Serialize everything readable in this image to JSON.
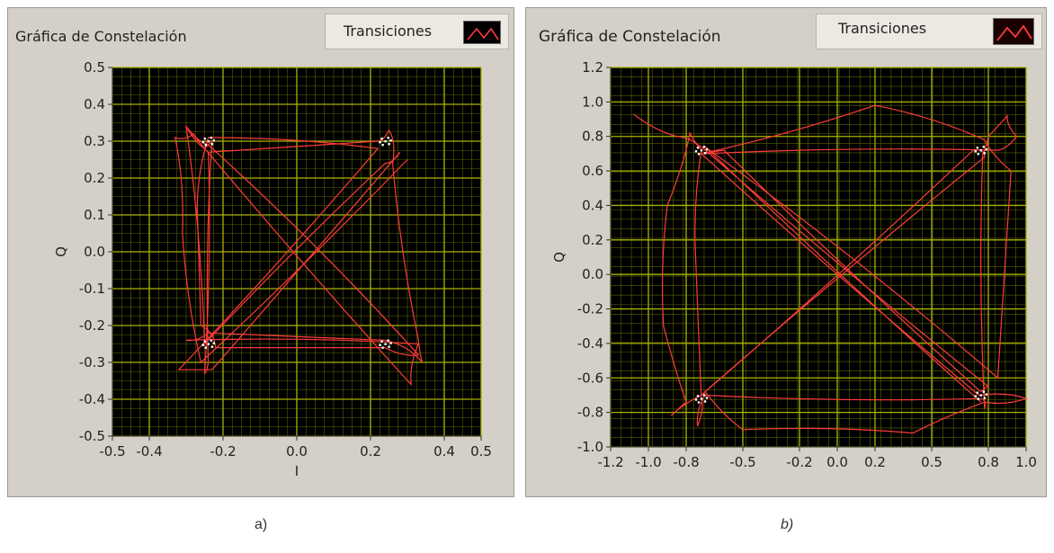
{
  "colors": {
    "panel_bg": "#d4d0c8",
    "plot_bg": "#000000",
    "grid": "#a8b400",
    "trace": "#ff3b3b",
    "marker": "#ffffff"
  },
  "chart_data": [
    {
      "type": "line",
      "title": "Gráfica de Constelación",
      "legend": "Transiciones",
      "legend_placement": "top-right",
      "xlabel": "I",
      "ylabel": "Q",
      "xlim": [
        -0.5,
        0.5
      ],
      "ylim": [
        -0.5,
        0.5
      ],
      "grid": true,
      "xticks": [
        "-0.5",
        "-0.4",
        "-0.2",
        "0.0",
        "0.2",
        "0.4",
        "0.5"
      ],
      "xtick_values": [
        -0.5,
        -0.4,
        -0.2,
        0.0,
        0.2,
        0.4,
        0.5
      ],
      "yticks": [
        "0.5",
        "0.4",
        "0.3",
        "0.2",
        "0.1",
        "0.0",
        "-0.1",
        "-0.2",
        "-0.3",
        "-0.4",
        "-0.5"
      ],
      "ytick_values": [
        0.5,
        0.4,
        0.3,
        0.2,
        0.1,
        0.0,
        -0.1,
        -0.2,
        -0.3,
        -0.4,
        -0.5
      ],
      "symbols": [
        {
          "x": -0.24,
          "y": 0.3
        },
        {
          "x": 0.24,
          "y": 0.3
        },
        {
          "x": -0.24,
          "y": -0.25
        },
        {
          "x": 0.24,
          "y": -0.25
        }
      ],
      "series": [
        {
          "values": [
            [
              -0.3,
              0.34
            ],
            [
              -0.25,
              0.28
            ],
            [
              -0.23,
              0.3
            ],
            [
              -0.24,
              -0.3
            ],
            [
              -0.25,
              -0.33
            ],
            [
              -0.24,
              0.27
            ],
            [
              0.22,
              0.3
            ],
            [
              0.25,
              0.33
            ],
            [
              0.26,
              0.24
            ],
            [
              0.33,
              -0.24
            ],
            [
              0.34,
              -0.3
            ],
            [
              0.24,
              -0.24
            ],
            [
              -0.24,
              -0.22
            ],
            [
              -0.3,
              -0.24
            ],
            [
              0.33,
              -0.25
            ],
            [
              0.31,
              -0.36
            ],
            [
              -0.3,
              0.34
            ],
            [
              -0.25,
              -0.25
            ],
            [
              0.24,
              0.24
            ],
            [
              0.28,
              0.27
            ],
            [
              -0.23,
              -0.32
            ],
            [
              -0.32,
              -0.32
            ],
            [
              0.22,
              0.28
            ],
            [
              -0.24,
              0.31
            ],
            [
              -0.27,
              0.12
            ],
            [
              -0.26,
              -0.2
            ],
            [
              -0.22,
              -0.26
            ],
            [
              0.24,
              -0.26
            ],
            [
              0.33,
              -0.28
            ],
            [
              -0.24,
              0.29
            ],
            [
              -0.28,
              0.32
            ],
            [
              -0.33,
              0.31
            ],
            [
              -0.31,
              0.05
            ],
            [
              -0.26,
              -0.3
            ],
            [
              0.3,
              0.25
            ]
          ]
        }
      ]
    },
    {
      "type": "line",
      "title": "Gráfica de Constelación",
      "legend": "Transiciones",
      "legend_placement": "top-right",
      "xlabel": "",
      "ylabel": "Q",
      "xlim": [
        -1.2,
        1.0
      ],
      "ylim": [
        -1.0,
        1.2
      ],
      "grid": true,
      "xticks": [
        "-1.2",
        "-1.0",
        "-0.8",
        "-0.5",
        "-0.2",
        "0.0",
        "0.2",
        "0.5",
        "0.8",
        "1.0"
      ],
      "xtick_values": [
        -1.2,
        -1.0,
        -0.8,
        -0.5,
        -0.2,
        0.0,
        0.2,
        0.5,
        0.8,
        1.0
      ],
      "yticks": [
        "1.2",
        "1.0",
        "0.8",
        "0.6",
        "0.4",
        "0.2",
        "0.0",
        "-0.2",
        "-0.4",
        "-0.6",
        "-0.8",
        "-1.0"
      ],
      "ytick_values": [
        1.2,
        1.0,
        0.8,
        0.6,
        0.4,
        0.2,
        0.0,
        -0.2,
        -0.4,
        -0.6,
        -0.8,
        -1.0
      ],
      "symbols": [
        {
          "x": -0.72,
          "y": 0.72
        },
        {
          "x": 0.76,
          "y": 0.72
        },
        {
          "x": -0.72,
          "y": -0.72
        },
        {
          "x": 0.76,
          "y": -0.7
        }
      ],
      "series": [
        {
          "values": [
            [
              -1.08,
              0.93
            ],
            [
              -0.85,
              0.8
            ],
            [
              -0.72,
              0.72
            ],
            [
              -0.75,
              0.1
            ],
            [
              -0.72,
              -0.72
            ],
            [
              -0.74,
              -0.88
            ],
            [
              -0.7,
              -0.7
            ],
            [
              0.75,
              -0.72
            ],
            [
              0.78,
              -0.78
            ],
            [
              0.77,
              0.7
            ],
            [
              0.8,
              0.8
            ],
            [
              0.9,
              0.92
            ],
            [
              0.95,
              0.8
            ],
            [
              0.85,
              0.72
            ],
            [
              -0.7,
              0.7
            ],
            [
              -0.6,
              0.72
            ],
            [
              0.76,
              -0.68
            ],
            [
              0.8,
              -0.65
            ],
            [
              -0.72,
              0.74
            ],
            [
              -0.78,
              0.82
            ],
            [
              -0.9,
              0.4
            ],
            [
              -0.92,
              -0.3
            ],
            [
              -0.8,
              -0.74
            ],
            [
              -0.88,
              -0.82
            ],
            [
              -0.72,
              -0.7
            ],
            [
              0.72,
              0.72
            ],
            [
              0.78,
              0.68
            ],
            [
              -0.7,
              -0.68
            ],
            [
              -0.5,
              -0.9
            ],
            [
              0.4,
              -0.92
            ],
            [
              0.78,
              -0.74
            ],
            [
              1.0,
              -0.72
            ],
            [
              0.75,
              -0.7
            ],
            [
              -0.72,
              0.7
            ],
            [
              0.2,
              0.98
            ],
            [
              0.78,
              0.78
            ],
            [
              0.92,
              0.6
            ],
            [
              0.85,
              -0.6
            ],
            [
              -0.7,
              0.74
            ],
            [
              0.76,
              -0.74
            ]
          ]
        }
      ]
    }
  ],
  "captions": {
    "a": "a)",
    "b": "b)"
  }
}
